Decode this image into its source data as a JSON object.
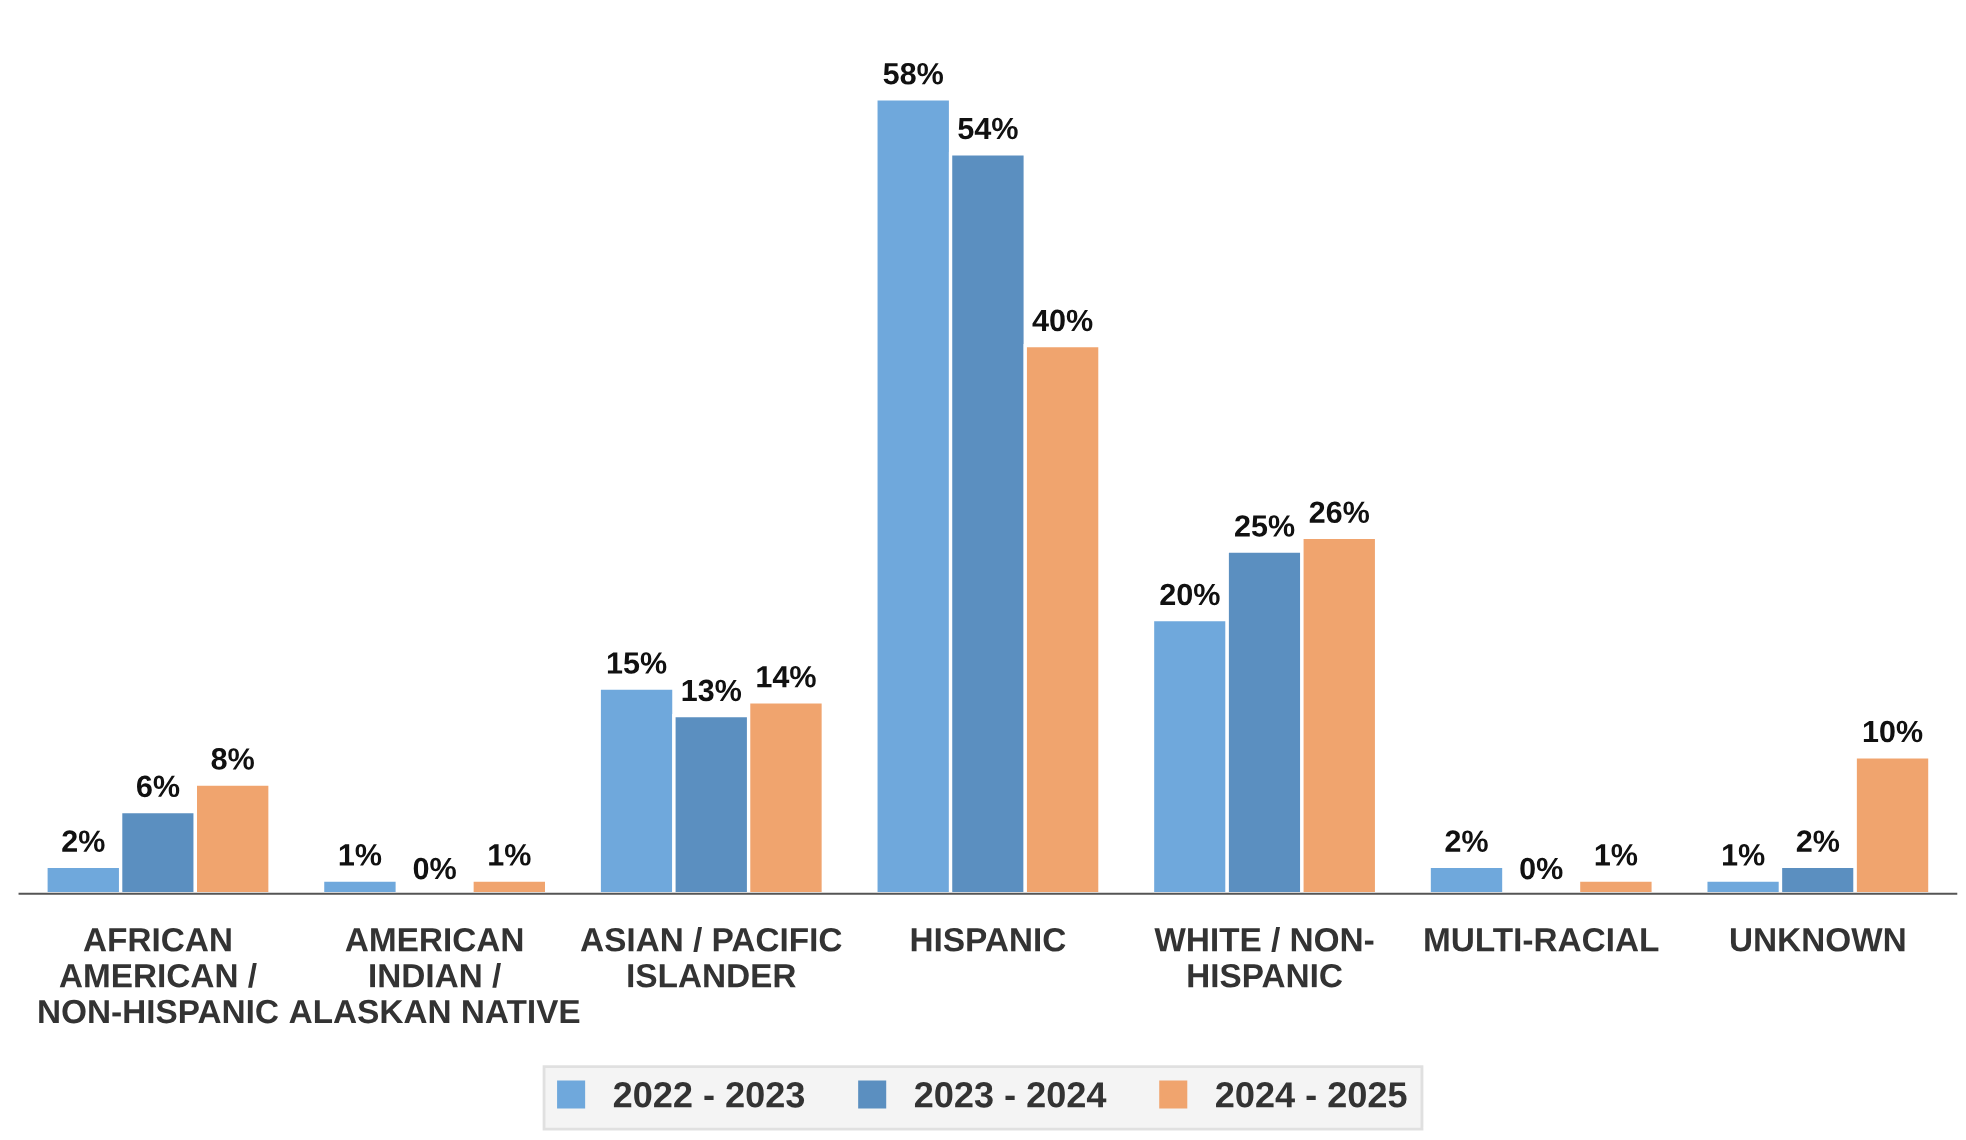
{
  "chart_data": {
    "type": "bar",
    "categories": [
      "AFRICAN\nAMERICAN /\nNON-HISPANIC",
      "AMERICAN\nINDIAN /\nALASKAN NATIVE",
      "ASIAN / PACIFIC\nISLANDER",
      "HISPANIC",
      "WHITE / NON-\nHISPANIC",
      "MULTI-RACIAL",
      "UNKNOWN"
    ],
    "series": [
      {
        "name": "2022 - 2023",
        "color": "#6fa8dc",
        "values": [
          2,
          1,
          15,
          58,
          20,
          2,
          1
        ],
        "value_labels": [
          "2%",
          "1%",
          "15%",
          "58%",
          "20%",
          "2%",
          "1%"
        ]
      },
      {
        "name": "2023 - 2024",
        "color": "#5b8fc0",
        "values": [
          6,
          0,
          13,
          54,
          25,
          0,
          2
        ],
        "value_labels": [
          "6%",
          "0%",
          "13%",
          "54%",
          "25%",
          "0%",
          "2%"
        ]
      },
      {
        "name": "2024 - 2025",
        "color": "#f0a46e",
        "values": [
          8,
          1,
          14,
          40,
          26,
          1,
          10
        ],
        "value_labels": [
          "8%",
          "1%",
          "14%",
          "40%",
          "26%",
          "1%",
          "10%"
        ]
      }
    ],
    "legend": "bottom",
    "grid": false
  }
}
